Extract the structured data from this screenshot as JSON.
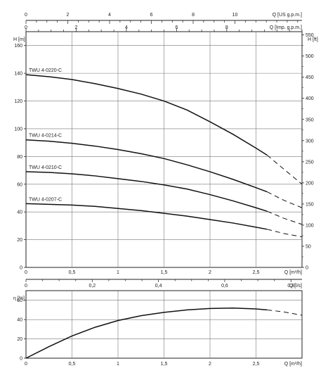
{
  "chart_data": [
    {
      "type": "line",
      "title": "",
      "xlabel": "Q [m³/h]",
      "ylabel": "H [m]",
      "y2label": "H [ft]",
      "x2label_top": "Q [US g.p.m.]",
      "x2label_mid": "Q [Imp. g.p.m.]",
      "x2label_bottom": "Q [l/s]",
      "xlim": [
        0,
        3
      ],
      "ylim": [
        0,
        170
      ],
      "y2lim": [
        0,
        557.7
      ],
      "grid": true,
      "x_ticks": [
        0,
        0.5,
        1,
        1.5,
        2,
        2.5
      ],
      "x_tick_labels": [
        "0",
        "0,5",
        "1",
        "1,5",
        "2",
        "2,5"
      ],
      "y_ticks": [
        0,
        20,
        40,
        60,
        80,
        100,
        120,
        140,
        160
      ],
      "y_tick_labels": [
        "0",
        "20",
        "40",
        "60",
        "80",
        "100",
        "120",
        "140",
        "160"
      ],
      "y2_ticks": [
        0,
        50,
        100,
        150,
        200,
        250,
        300,
        350,
        400,
        450,
        500,
        550
      ],
      "y2_tick_labels": [
        "0",
        "50",
        "100",
        "150",
        "200",
        "250",
        "300",
        "350",
        "400",
        "450",
        "500",
        "550"
      ],
      "us_gpm_ticks": [
        0,
        2,
        4,
        6,
        8,
        10
      ],
      "us_gpm_tick_labels": [
        "0",
        "2",
        "4",
        "6",
        "8",
        "10"
      ],
      "imp_gpm_ticks": [
        0,
        2,
        4,
        6,
        8
      ],
      "imp_gpm_tick_labels": [
        "0",
        "2",
        "4",
        "6",
        "8"
      ],
      "ls_ticks": [
        0,
        0.2,
        0.4,
        0.6,
        0.8
      ],
      "ls_tick_labels": [
        "0",
        "0,2",
        "0,4",
        "0,6",
        "0,8"
      ],
      "series": [
        {
          "name": "TWU 4-0220-C",
          "x": [
            0,
            0.25,
            0.5,
            0.75,
            1,
            1.25,
            1.5,
            1.75,
            2,
            2.25,
            2.5,
            2.62
          ],
          "y": [
            139,
            137.5,
            135.5,
            132.5,
            129,
            125,
            120,
            113.5,
            105,
            96,
            86,
            81
          ],
          "x_ext": [
            2.62,
            2.8,
            3.0
          ],
          "y_ext": [
            81,
            71,
            60
          ]
        },
        {
          "name": "TWU 4-0214-C",
          "x": [
            0,
            0.25,
            0.5,
            0.75,
            1,
            1.25,
            1.5,
            1.75,
            2,
            2.25,
            2.5,
            2.62
          ],
          "y": [
            92,
            91,
            89.5,
            87.5,
            85,
            82,
            78.5,
            74,
            69,
            63.5,
            57.5,
            54.5
          ],
          "x_ext": [
            2.62,
            2.8,
            3.0
          ],
          "y_ext": [
            54.5,
            48.5,
            43
          ]
        },
        {
          "name": "TWU 4-0210-C",
          "x": [
            0,
            0.25,
            0.5,
            0.75,
            1,
            1.25,
            1.5,
            1.75,
            2,
            2.25,
            2.5,
            2.62
          ],
          "y": [
            69,
            68.5,
            67.5,
            66,
            64,
            62,
            59.5,
            56.5,
            52.5,
            48,
            43,
            40.5
          ],
          "x_ext": [
            2.62,
            2.8,
            3.0
          ],
          "y_ext": [
            40.5,
            35.5,
            31
          ]
        },
        {
          "name": "TWU 4-0207-C",
          "x": [
            0,
            0.25,
            0.5,
            0.75,
            1,
            1.25,
            1.5,
            1.75,
            2,
            2.25,
            2.5,
            2.62
          ],
          "y": [
            46,
            45.5,
            45,
            44,
            42.5,
            41,
            39,
            37,
            34.5,
            32,
            29,
            27.5
          ],
          "x_ext": [
            2.62,
            2.8,
            3.0
          ],
          "y_ext": [
            27.5,
            24.5,
            22
          ]
        }
      ]
    },
    {
      "type": "line",
      "title": "",
      "xlabel": "Q [m³/h]",
      "ylabel": "η [%]",
      "xlim": [
        0,
        3
      ],
      "ylim": [
        0,
        70
      ],
      "grid": true,
      "x_ticks": [
        0,
        0.5,
        1,
        1.5,
        2,
        2.5
      ],
      "x_tick_labels": [
        "0",
        "0,5",
        "1",
        "1,5",
        "2",
        "2,5"
      ],
      "y_ticks": [
        0,
        20,
        40,
        60
      ],
      "y_tick_labels": [
        "0",
        "20",
        "40",
        "60"
      ],
      "series": [
        {
          "name": "",
          "x": [
            0,
            0.25,
            0.5,
            0.75,
            1,
            1.25,
            1.5,
            1.75,
            2,
            2.25,
            2.5,
            2.62
          ],
          "y": [
            0,
            12,
            23,
            32,
            39,
            44,
            47.5,
            50,
            51.5,
            52,
            51,
            50
          ],
          "x_ext": [
            2.62,
            2.8,
            3.0
          ],
          "y_ext": [
            50,
            48,
            44.5
          ]
        }
      ]
    }
  ]
}
